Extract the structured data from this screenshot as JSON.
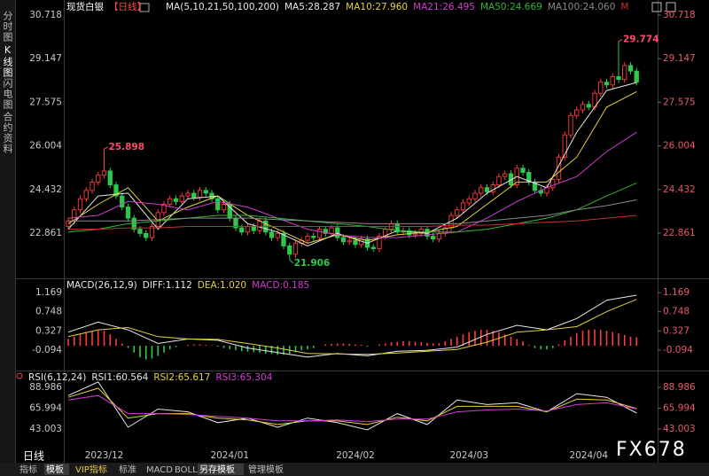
{
  "ui": {
    "sidebar": [
      "分时图",
      "K线图",
      "闪电图",
      "合约资料"
    ],
    "period": "日线",
    "toolbar": [
      "指标",
      "模板",
      "VIP指标",
      "标准",
      "MACD",
      "BOLL",
      "另存模板",
      "管理模板"
    ],
    "watermark": "FX678"
  },
  "chart_data": [
    {
      "type": "candlestick",
      "title": "现货白银",
      "period": "【日线】",
      "period_color": "#ff4a4a",
      "label": "MA(5,10,21,50,100,200)",
      "categories": [
        null,
        null,
        null,
        null,
        null,
        null,
        "2023/12",
        null,
        null,
        null,
        null,
        null,
        null,
        null,
        null,
        null,
        null,
        null,
        null,
        null,
        null,
        null,
        null,
        null,
        null,
        null,
        null,
        "2024/01",
        null,
        null,
        null,
        null,
        null,
        null,
        null,
        null,
        null,
        null,
        null,
        null,
        null,
        null,
        null,
        null,
        null,
        null,
        null,
        null,
        "2024/02",
        null,
        null,
        null,
        null,
        null,
        null,
        null,
        null,
        null,
        null,
        null,
        null,
        null,
        null,
        null,
        null,
        null,
        null,
        "2024/03",
        null,
        null,
        null,
        null,
        null,
        null,
        null,
        null,
        null,
        null,
        null,
        null,
        null,
        null,
        null,
        null,
        null,
        null,
        null,
        "2024/04",
        null,
        null,
        null,
        null,
        null,
        null,
        null,
        null
      ],
      "open": [
        23.1,
        23.3,
        23.7,
        24.1,
        24.4,
        24.7,
        24.95,
        25.1,
        24.6,
        24.2,
        23.8,
        23.4,
        23.0,
        22.85,
        22.7,
        23.1,
        23.6,
        23.9,
        24.1,
        24.0,
        24.2,
        24.3,
        24.15,
        24.4,
        24.3,
        24.1,
        23.7,
        23.9,
        23.4,
        23.05,
        22.9,
        23.1,
        22.95,
        23.3,
        22.9,
        22.7,
        22.85,
        22.4,
        22.1,
        22.5,
        22.6,
        22.75,
        22.7,
        23.0,
        22.85,
        23.05,
        22.7,
        22.55,
        22.6,
        22.45,
        22.65,
        22.35,
        22.3,
        22.75,
        23.0,
        23.2,
        22.9,
        22.95,
        22.8,
        22.85,
        23.0,
        22.75,
        22.65,
        22.85,
        23.05,
        23.5,
        23.7,
        23.95,
        24.1,
        24.3,
        24.5,
        24.35,
        24.6,
        24.9,
        25.0,
        24.6,
        25.2,
        25.05,
        24.7,
        24.4,
        24.3,
        24.5,
        24.8,
        25.6,
        26.4,
        27.1,
        27.3,
        27.5,
        27.4,
        27.9,
        28.3,
        28.2,
        28.5,
        28.4,
        28.9,
        28.7
      ],
      "high": [
        23.42,
        23.82,
        24.22,
        24.52,
        24.82,
        25.07,
        25.898,
        25.22,
        24.72,
        24.32,
        23.92,
        23.52,
        23.12,
        22.97,
        23.22,
        23.72,
        24.02,
        24.22,
        24.22,
        24.32,
        24.42,
        24.42,
        24.52,
        24.52,
        24.42,
        24.22,
        24.02,
        24.02,
        23.52,
        23.17,
        23.22,
        23.22,
        23.42,
        23.42,
        23.02,
        22.97,
        22.97,
        22.52,
        22.62,
        22.72,
        22.87,
        22.87,
        23.12,
        23.12,
        23.17,
        23.17,
        22.82,
        22.72,
        22.72,
        22.77,
        22.77,
        22.47,
        22.87,
        23.12,
        23.32,
        23.32,
        23.07,
        23.07,
        22.97,
        23.12,
        23.12,
        22.87,
        22.97,
        23.17,
        23.62,
        23.82,
        24.07,
        24.22,
        24.42,
        24.62,
        24.62,
        24.72,
        25.02,
        25.12,
        25.12,
        25.32,
        25.32,
        25.17,
        24.82,
        24.52,
        24.62,
        24.92,
        25.72,
        26.52,
        27.22,
        27.42,
        27.62,
        27.62,
        28.02,
        28.42,
        28.42,
        28.62,
        29.774,
        29.02,
        29.02,
        28.82
      ],
      "low": [
        22.98,
        23.18,
        23.58,
        23.98,
        24.28,
        24.58,
        24.83,
        24.48,
        24.08,
        23.68,
        23.28,
        22.88,
        22.73,
        22.58,
        22.58,
        22.98,
        23.48,
        23.78,
        23.88,
        23.88,
        24.08,
        24.03,
        24.03,
        24.18,
        23.98,
        23.58,
        23.58,
        23.28,
        22.93,
        22.78,
        22.78,
        22.83,
        22.83,
        22.78,
        22.58,
        22.58,
        22.28,
        21.906,
        21.98,
        22.38,
        22.48,
        22.58,
        22.58,
        22.73,
        22.73,
        22.58,
        22.43,
        22.43,
        22.33,
        22.33,
        22.23,
        22.18,
        22.18,
        22.63,
        22.88,
        22.78,
        22.78,
        22.68,
        22.68,
        22.73,
        22.63,
        22.53,
        22.53,
        22.73,
        22.93,
        23.38,
        23.58,
        23.83,
        23.98,
        24.18,
        24.23,
        24.23,
        24.48,
        24.78,
        24.48,
        24.48,
        24.93,
        24.58,
        24.28,
        24.18,
        24.18,
        24.38,
        24.68,
        25.48,
        26.28,
        26.98,
        27.18,
        27.28,
        27.28,
        27.78,
        28.08,
        28.08,
        28.28,
        28.28,
        28.58,
        28.18
      ],
      "close": [
        23.3,
        23.7,
        24.1,
        24.4,
        24.7,
        24.95,
        25.1,
        24.6,
        24.2,
        23.8,
        23.4,
        23.0,
        22.85,
        22.7,
        23.1,
        23.6,
        23.9,
        24.1,
        24.0,
        24.2,
        24.3,
        24.15,
        24.4,
        24.3,
        24.1,
        23.7,
        23.9,
        23.4,
        23.05,
        22.9,
        23.1,
        22.95,
        23.3,
        22.9,
        22.7,
        22.85,
        22.4,
        22.1,
        22.5,
        22.6,
        22.75,
        22.7,
        23.0,
        22.85,
        23.05,
        22.7,
        22.55,
        22.6,
        22.45,
        22.65,
        22.35,
        22.3,
        22.75,
        23.0,
        23.2,
        22.9,
        22.95,
        22.8,
        22.85,
        23.0,
        22.75,
        22.65,
        22.85,
        23.05,
        23.5,
        23.7,
        23.95,
        24.1,
        24.3,
        24.5,
        24.35,
        24.6,
        24.9,
        25.0,
        24.6,
        25.2,
        25.05,
        24.7,
        24.4,
        24.3,
        24.5,
        24.8,
        25.6,
        26.4,
        27.1,
        27.3,
        27.5,
        27.4,
        27.9,
        28.3,
        28.2,
        28.5,
        28.4,
        28.9,
        28.7,
        28.3
      ],
      "up_color": "#ff3b3b",
      "down_color": "#2fc84a",
      "annotations": [
        {
          "value": 25.898,
          "color": "#ff4a6a"
        },
        {
          "value": 29.774,
          "color": "#ff4a6a"
        },
        {
          "value": 21.906,
          "color": "#2fc84a"
        }
      ],
      "ylim": [
        21.296,
        31.261
      ],
      "yticks": [
        30.718,
        29.147,
        27.575,
        26.004,
        24.432,
        22.861
      ],
      "x": [
        0,
        5,
        10,
        15,
        20,
        25,
        30,
        35,
        40,
        45,
        50,
        55,
        60,
        65,
        70,
        75,
        80,
        85,
        90,
        95
      ],
      "series": [
        {
          "name": "MA5:28.287",
          "color": "#e8e8e8",
          "values": [
            23.0,
            24.2,
            24.3,
            23.0,
            24.1,
            24.2,
            23.2,
            22.9,
            22.4,
            22.85,
            22.5,
            22.95,
            22.85,
            23.4,
            24.3,
            24.9,
            24.5,
            26.5,
            28.0,
            28.287
          ]
        },
        {
          "name": "MA10:27.960",
          "color": "#e6d23c",
          "values": [
            23.2,
            23.9,
            24.5,
            23.3,
            23.8,
            24.2,
            23.5,
            23.0,
            22.5,
            22.8,
            22.6,
            22.8,
            22.9,
            23.1,
            23.9,
            24.7,
            24.7,
            25.6,
            27.4,
            27.96
          ]
        },
        {
          "name": "MA21:26.495",
          "color": "#d23cd2",
          "values": [
            23.4,
            23.5,
            24.0,
            23.9,
            23.7,
            24.0,
            23.8,
            23.4,
            23.0,
            22.8,
            22.7,
            22.7,
            22.8,
            22.9,
            23.4,
            24.0,
            24.5,
            24.9,
            25.8,
            26.495
          ]
        },
        {
          "name": "MA50:24.669",
          "color": "#35b535",
          "values": [
            22.9,
            23.0,
            23.2,
            23.3,
            23.4,
            23.5,
            23.5,
            23.4,
            23.3,
            23.2,
            23.1,
            22.95,
            22.9,
            22.9,
            23.0,
            23.2,
            23.4,
            23.7,
            24.2,
            24.669
          ]
        },
        {
          "name": "MA100:24.060",
          "color": "#8a8a8a",
          "values": [
            23.3,
            23.3,
            23.3,
            23.35,
            23.4,
            23.4,
            23.4,
            23.35,
            23.3,
            23.25,
            23.2,
            23.2,
            23.2,
            23.2,
            23.3,
            23.4,
            23.5,
            23.7,
            23.85,
            24.06
          ]
        },
        {
          "name": "M",
          "color": "#c83030",
          "values": [
            23.0,
            23.0,
            23.05,
            23.05,
            23.1,
            23.1,
            23.1,
            23.1,
            23.1,
            23.1,
            23.1,
            23.1,
            23.1,
            23.15,
            23.15,
            23.2,
            23.25,
            23.3,
            23.4,
            23.5
          ]
        }
      ]
    },
    {
      "type": "macd",
      "label": "MACD(26,12,9)",
      "ylim": [
        -0.427,
        1.404
      ],
      "yticks": [
        1.169,
        0.748,
        0.327,
        -0.094
      ],
      "x": [
        0,
        5,
        10,
        15,
        20,
        25,
        30,
        35,
        40,
        45,
        50,
        55,
        60,
        65,
        70,
        75,
        80,
        85,
        90,
        95
      ],
      "series": [
        {
          "name": "DIFF:1.112",
          "color": "#e8e8e8",
          "values": [
            0.3,
            0.52,
            0.35,
            0.05,
            0.15,
            0.12,
            -0.05,
            -0.15,
            -0.25,
            -0.17,
            -0.22,
            -0.12,
            -0.1,
            -0.03,
            0.25,
            0.45,
            0.35,
            0.6,
            1.0,
            1.112
          ]
        },
        {
          "name": "DEA:1.020",
          "color": "#e6d23c",
          "values": [
            0.2,
            0.35,
            0.4,
            0.2,
            0.15,
            0.14,
            0.05,
            -0.05,
            -0.17,
            -0.18,
            -0.19,
            -0.16,
            -0.12,
            -0.08,
            0.08,
            0.3,
            0.35,
            0.42,
            0.75,
            1.02
          ]
        }
      ],
      "histogram": {
        "name": "MACD:0.185",
        "color": "#d23cd2",
        "up_color": "#ff3b3b",
        "down_color": "#2fc84a",
        "values": [
          0.15,
          0.2,
          0.25,
          0.3,
          0.32,
          0.34,
          0.33,
          0.25,
          0.15,
          0.05,
          -0.05,
          -0.15,
          -0.25,
          -0.3,
          -0.28,
          -0.22,
          -0.15,
          -0.08,
          -0.03,
          0.0,
          0.02,
          0.03,
          0.03,
          0.02,
          0.01,
          -0.02,
          -0.05,
          -0.08,
          -0.1,
          -0.12,
          -0.13,
          -0.14,
          -0.15,
          -0.17,
          -0.18,
          -0.2,
          -0.2,
          -0.18,
          -0.14,
          -0.1,
          -0.08,
          -0.05,
          0.0,
          0.03,
          0.04,
          0.05,
          0.05,
          0.04,
          0.03,
          0.02,
          -0.02,
          0.0,
          0.03,
          0.05,
          0.08,
          0.09,
          0.1,
          0.1,
          0.09,
          0.08,
          0.06,
          0.05,
          0.06,
          0.1,
          0.15,
          0.2,
          0.25,
          0.3,
          0.33,
          0.35,
          0.35,
          0.33,
          0.3,
          0.25,
          0.2,
          0.15,
          0.1,
          0.02,
          -0.05,
          -0.08,
          -0.08,
          -0.05,
          0.03,
          0.12,
          0.2,
          0.28,
          0.33,
          0.35,
          0.36,
          0.35,
          0.33,
          0.3,
          0.27,
          0.24,
          0.2,
          0.185
        ]
      }
    },
    {
      "type": "rsi",
      "label": "RSI(6,12,24)",
      "ylim": [
        19.52,
        103.66
      ],
      "yticks": [
        88.986,
        65.994,
        43.003
      ],
      "x": [
        0,
        5,
        10,
        15,
        20,
        25,
        30,
        35,
        40,
        45,
        50,
        55,
        60,
        65,
        70,
        75,
        80,
        85,
        90,
        95
      ],
      "series": [
        {
          "name": "RSI1:60.564",
          "color": "#e8e8e8",
          "values": [
            80,
            95,
            45,
            65,
            62,
            50,
            55,
            45,
            55,
            50,
            42,
            60,
            48,
            75,
            70,
            72,
            62,
            82,
            78,
            60.564
          ]
        },
        {
          "name": "RSI2:65.617",
          "color": "#e6d23c",
          "values": [
            78,
            88,
            55,
            60,
            60,
            55,
            53,
            48,
            52,
            52,
            48,
            56,
            52,
            68,
            68,
            68,
            62,
            76,
            75,
            65.617
          ]
        },
        {
          "name": "RSI3:65.304",
          "color": "#d23cd2",
          "values": [
            75,
            80,
            60,
            60,
            59,
            57,
            55,
            52,
            52,
            53,
            51,
            54,
            54,
            62,
            64,
            65,
            63,
            70,
            72,
            65.304
          ]
        }
      ]
    }
  ]
}
